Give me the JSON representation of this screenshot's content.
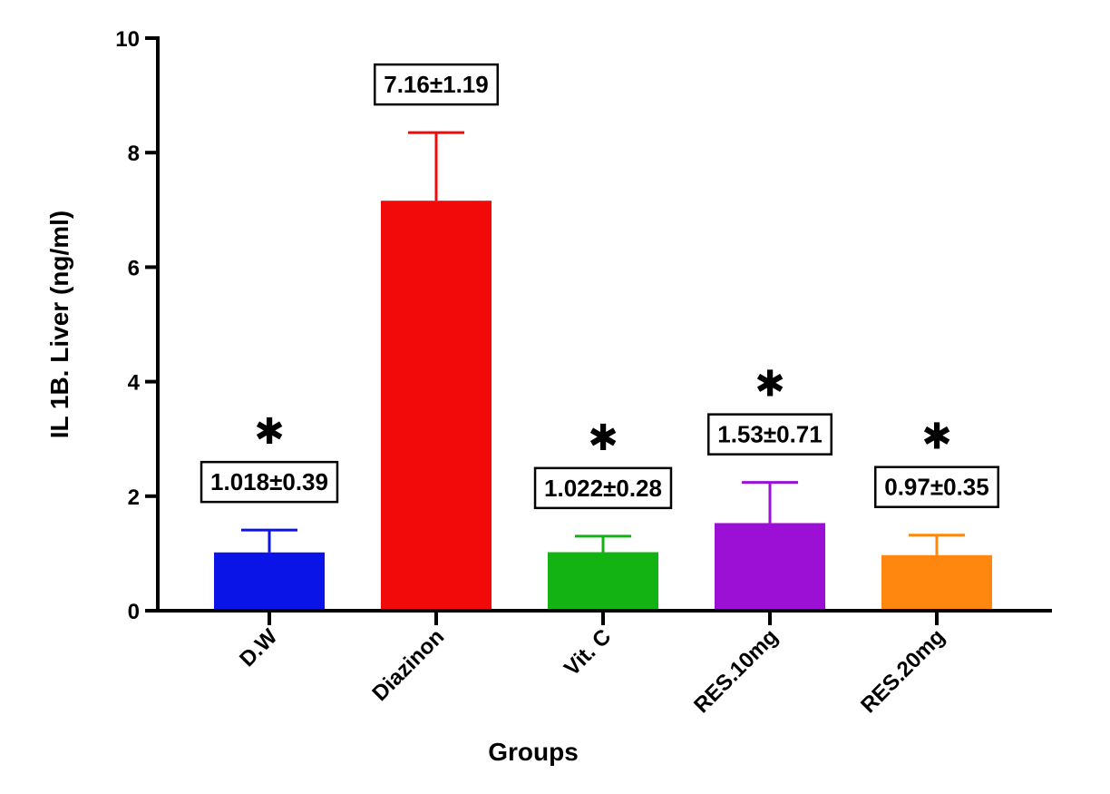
{
  "chart_data": {
    "type": "bar",
    "title": "",
    "xlabel": "Groups",
    "ylabel": "IL 1B. Liver (ng/ml)",
    "ylim": [
      0,
      10
    ],
    "yticks": [
      0,
      2,
      4,
      6,
      8,
      10
    ],
    "categories": [
      "D.W",
      "Diazinon",
      "Vit. C",
      "RES.10mg",
      "RES.20mg"
    ],
    "values": [
      1.018,
      7.16,
      1.022,
      1.53,
      0.97
    ],
    "errors": [
      0.39,
      1.19,
      0.28,
      0.71,
      0.35
    ],
    "data_labels": [
      "1.018±0.39",
      "7.16±1.19",
      "1.022±0.28",
      "1.53±0.71",
      "0.97±0.35"
    ],
    "significance": [
      "✱",
      "",
      "✱",
      "✱",
      "✱"
    ],
    "colors": [
      "#0a14e6",
      "#f20a0a",
      "#12b312",
      "#9c10d6",
      "#ff870f"
    ],
    "grid": false,
    "legend": "none"
  }
}
